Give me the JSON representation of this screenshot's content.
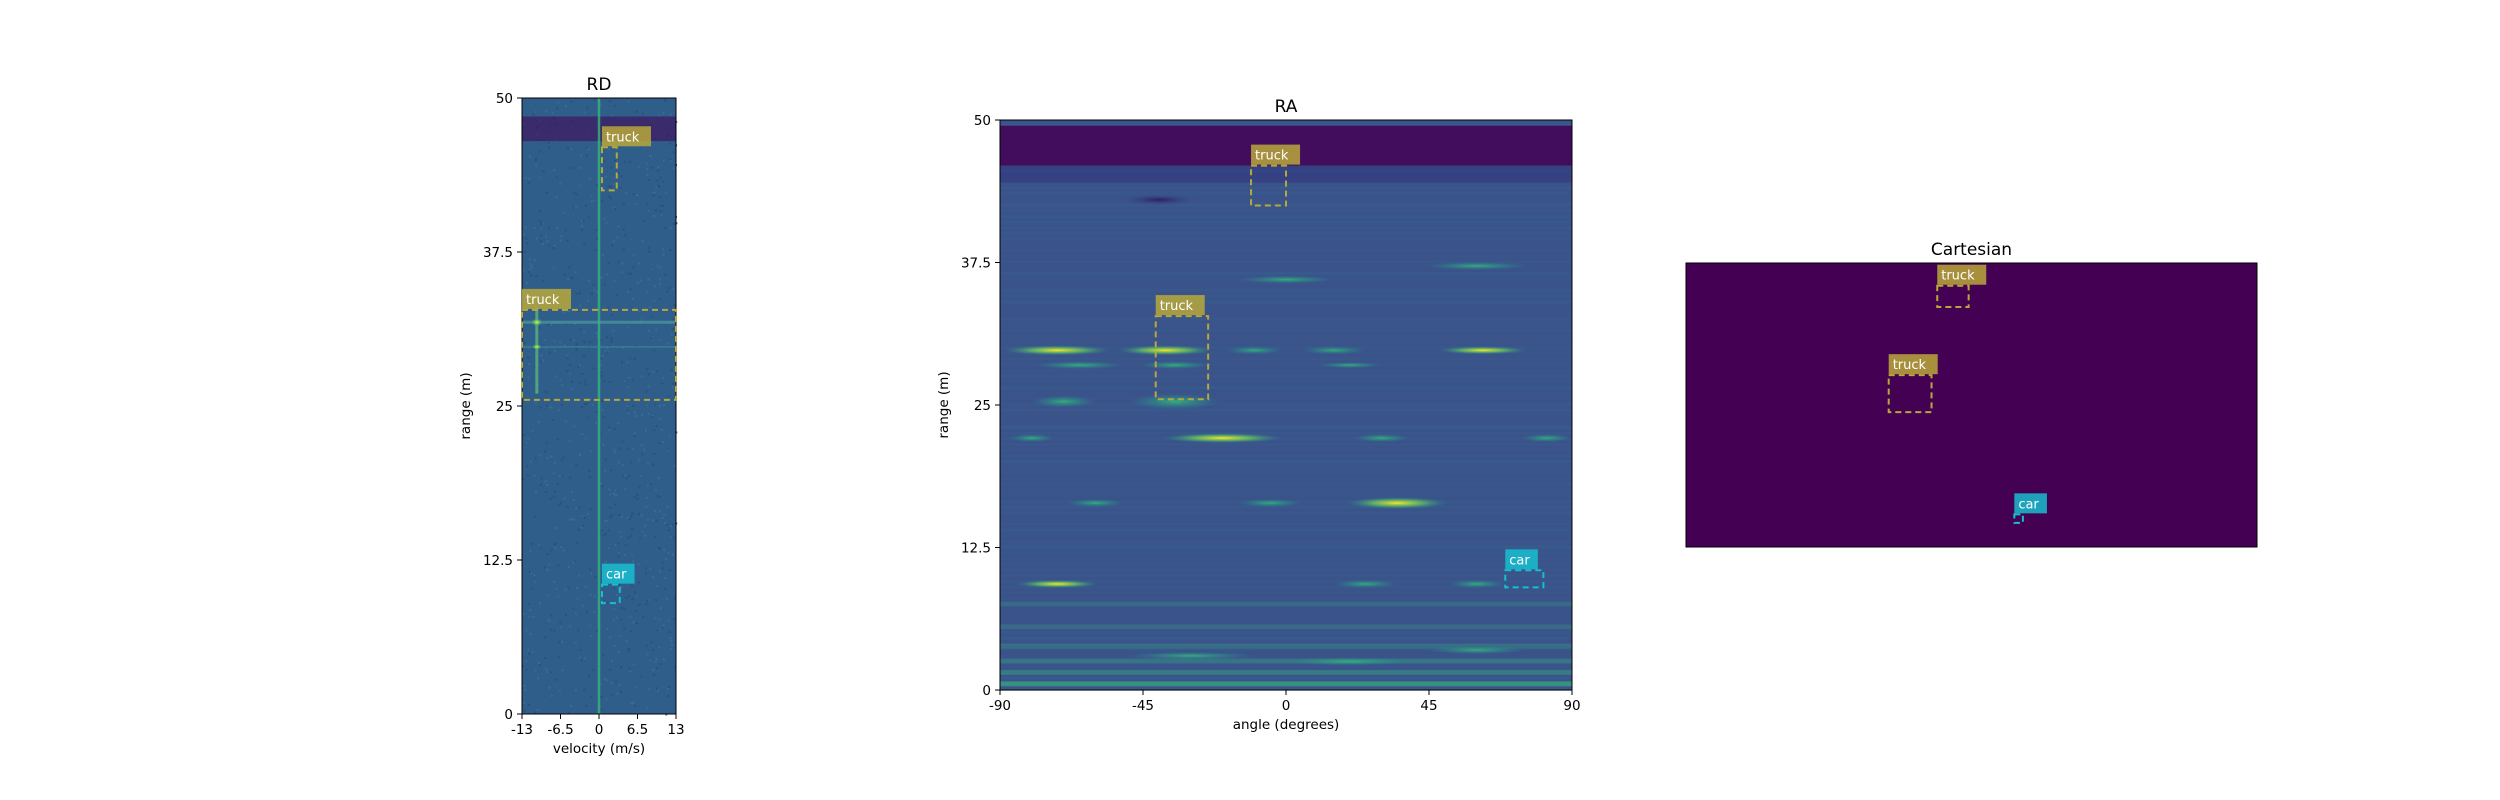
{
  "colors": {
    "truck": "#b8a83a",
    "car": "#17becf",
    "rd_background": "#2f5e8a",
    "ra_background": "#3b528b",
    "cartesian_background": "#440154",
    "strong_return": "#fde725",
    "deep_band": "#440154"
  },
  "chart_data": [
    {
      "type": "heatmap",
      "title": "RD",
      "xlabel": "velocity (m/s)",
      "ylabel": "range (m)",
      "xlim": [
        -13,
        13
      ],
      "ylim": [
        0,
        50
      ],
      "xticks": [
        "-13",
        "-6.5",
        "0",
        "6.5",
        "13"
      ],
      "yticks": [
        "0",
        "12.5",
        "25",
        "37.5",
        "50"
      ],
      "detections": [
        {
          "label": "truck",
          "x": [
            0.5,
            3.0
          ],
          "y": [
            42.5,
            46.0
          ]
        },
        {
          "label": "truck",
          "x": [
            -13.0,
            13.0
          ],
          "y": [
            25.5,
            32.8
          ]
        },
        {
          "label": "car",
          "x": [
            0.5,
            3.5
          ],
          "y": [
            9.0,
            10.5
          ]
        }
      ]
    },
    {
      "type": "heatmap",
      "title": "RA",
      "xlabel": "angle (degrees)",
      "ylabel": "range (m)",
      "xlim": [
        -90,
        90
      ],
      "ylim": [
        0,
        50
      ],
      "xticks": [
        "-90",
        "-45",
        "0",
        "45",
        "90"
      ],
      "yticks": [
        "0",
        "12.5",
        "25",
        "37.5",
        "50"
      ],
      "detections": [
        {
          "label": "truck",
          "x": [
            -11,
            0
          ],
          "y": [
            42.5,
            46.0
          ]
        },
        {
          "label": "truck",
          "x": [
            -41,
            -24.5
          ],
          "y": [
            25.5,
            32.8
          ]
        },
        {
          "label": "car",
          "x": [
            69,
            81
          ],
          "y": [
            9.0,
            10.5
          ]
        }
      ]
    },
    {
      "type": "heatmap",
      "title": "Cartesian",
      "detections": [
        {
          "label": "truck",
          "x": [
            0.44,
            0.495
          ],
          "y": [
            0.845,
            0.92
          ]
        },
        {
          "label": "truck",
          "x": [
            0.355,
            0.43
          ],
          "y": [
            0.475,
            0.605
          ]
        },
        {
          "label": "car",
          "x": [
            0.575,
            0.59
          ],
          "y": [
            0.085,
            0.115
          ]
        }
      ]
    }
  ]
}
